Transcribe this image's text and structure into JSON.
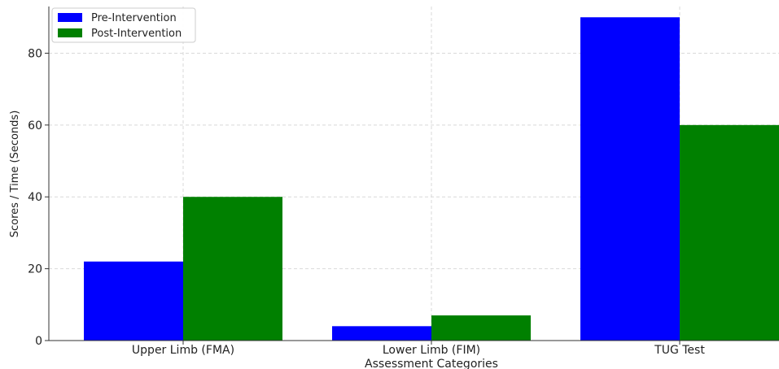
{
  "chart_data": {
    "type": "bar",
    "categories": [
      "Upper Limb (FMA)",
      "Lower Limb (FIM)",
      "TUG Test"
    ],
    "series": [
      {
        "name": "Pre-Intervention",
        "values": [
          22,
          4,
          90
        ],
        "color": "#0000ff"
      },
      {
        "name": "Post-Intervention",
        "values": [
          40,
          7,
          60
        ],
        "color": "#008000"
      }
    ],
    "xlabel": "Assessment Categories",
    "ylabel": "Scores / Time (Seconds)",
    "ylim": [
      0,
      93
    ],
    "yticks": [
      0,
      20,
      40,
      60,
      80
    ],
    "grid": true,
    "legend": "top-left"
  }
}
